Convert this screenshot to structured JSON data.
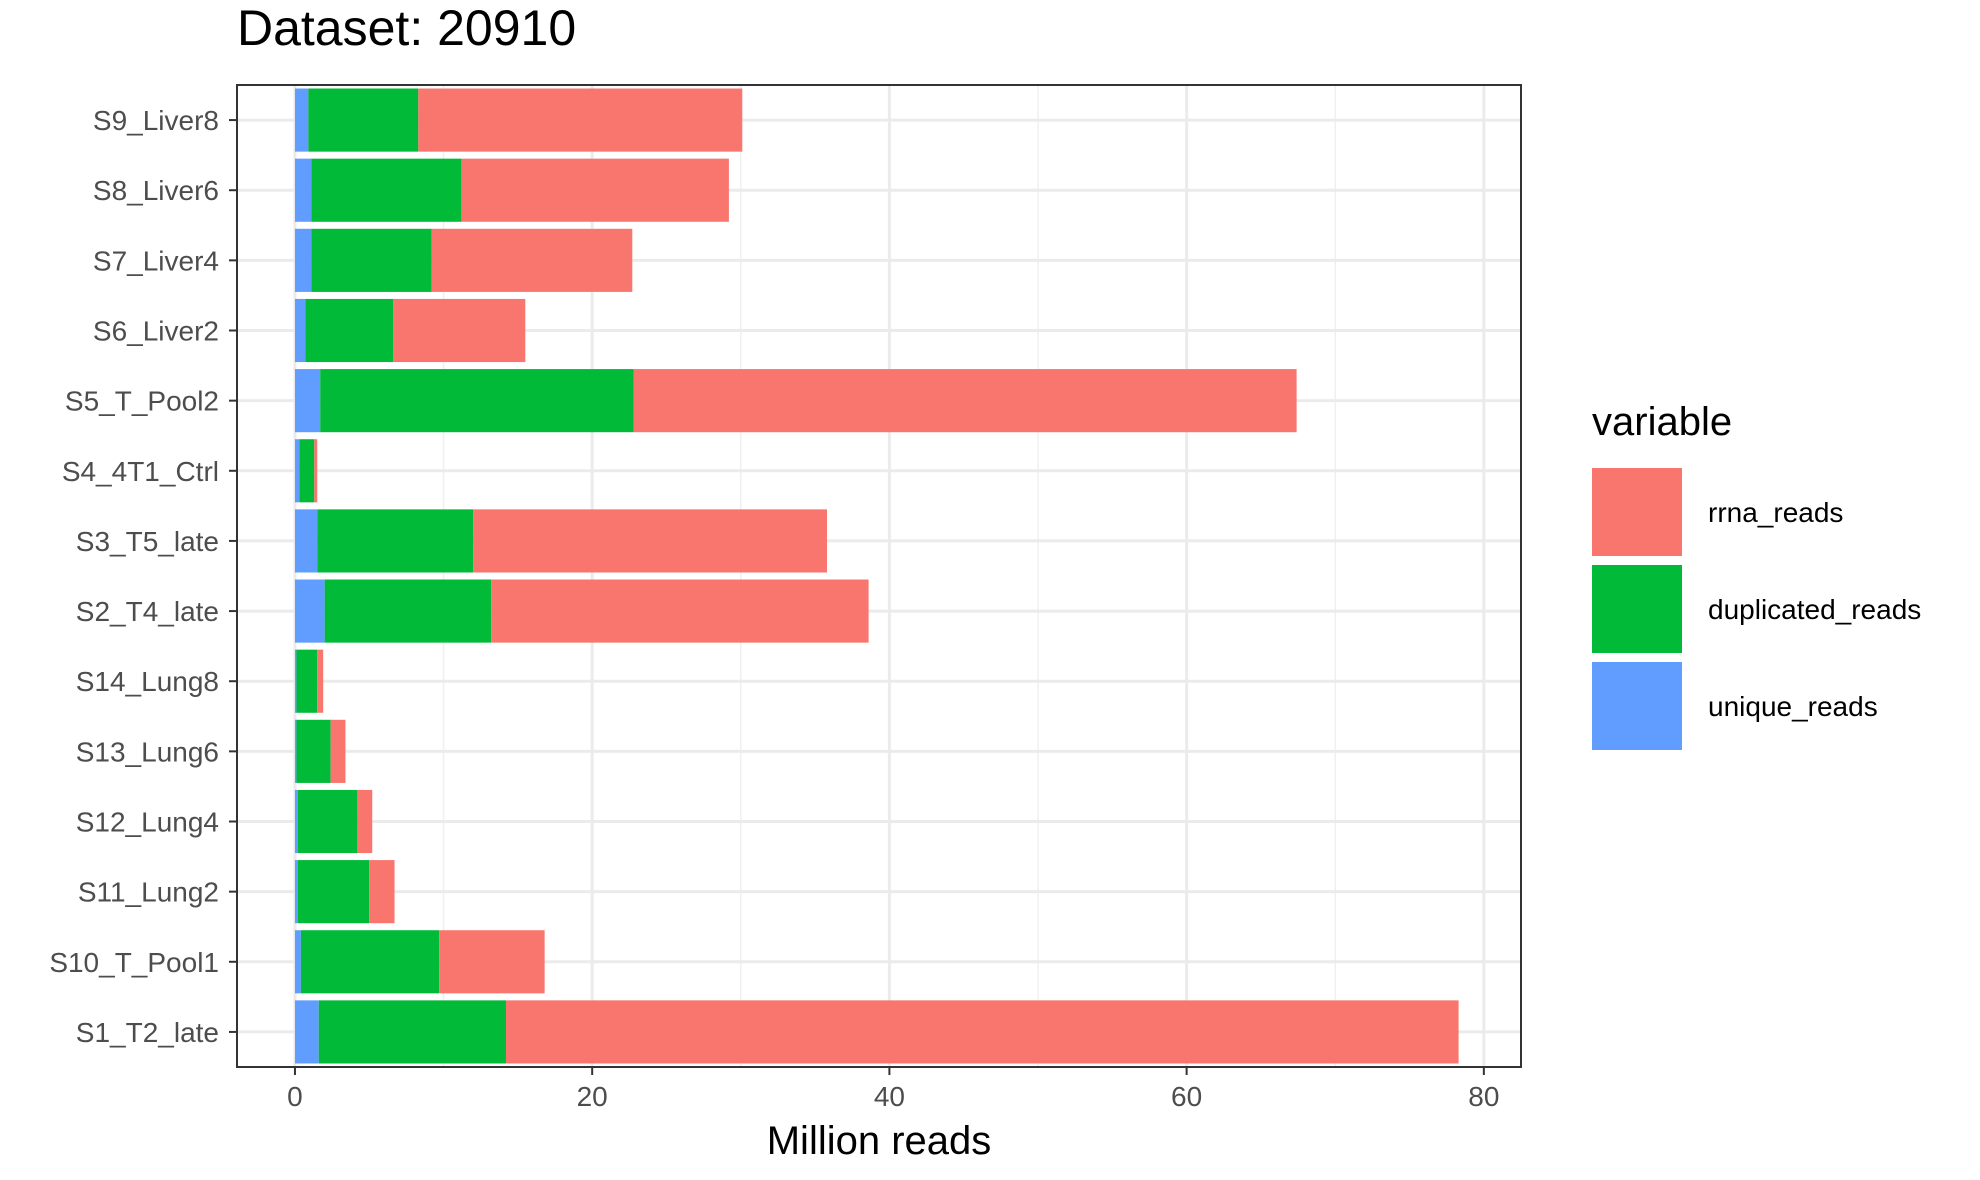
{
  "chart_data": {
    "type": "bar",
    "orientation": "horizontal",
    "stacked": true,
    "title": "Dataset:  20910",
    "xlabel": "Million reads",
    "ylabel": "",
    "xlim": [
      -3.9,
      82.5
    ],
    "xticks": [
      0,
      20,
      40,
      60,
      80
    ],
    "grid": true,
    "legend_position": "right",
    "legend_title": "variable",
    "legend_order": [
      "rrna_reads",
      "duplicated_reads",
      "unique_reads"
    ],
    "categories": [
      "S1_T2_late",
      "S10_T_Pool1",
      "S11_Lung2",
      "S12_Lung4",
      "S13_Lung6",
      "S14_Lung8",
      "S2_T4_late",
      "S3_T5_late",
      "S4_4T1_Ctrl",
      "S5_T_Pool2",
      "S6_Liver2",
      "S7_Liver4",
      "S8_Liver6",
      "S9_Liver8"
    ],
    "series": [
      {
        "name": "unique_reads",
        "color": "#619CFF",
        "values": [
          1.6,
          0.4,
          0.2,
          0.2,
          0.1,
          0.1,
          2.0,
          1.5,
          0.3,
          1.7,
          0.7,
          1.1,
          1.1,
          0.9
        ]
      },
      {
        "name": "duplicated_reads",
        "color": "#00BA38",
        "values": [
          12.6,
          9.3,
          4.8,
          4.0,
          2.3,
          1.4,
          11.2,
          10.5,
          1.0,
          21.1,
          5.9,
          8.1,
          10.1,
          7.4
        ]
      },
      {
        "name": "rrna_reads",
        "color": "#F8766D",
        "values": [
          64.1,
          7.1,
          1.7,
          1.0,
          1.0,
          0.4,
          25.4,
          23.8,
          0.2,
          44.6,
          8.9,
          13.5,
          18.0,
          21.8
        ]
      }
    ]
  }
}
